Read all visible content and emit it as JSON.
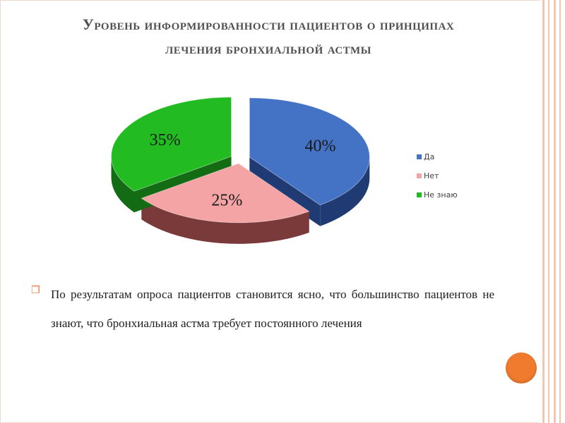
{
  "slide": {
    "title_line1": "Уровень информированности пациентов о принципах",
    "title_line2": "лечения бронхиальной астмы",
    "bullet_text": "По результатам опроса пациентов  становится ясно, что большинство пациентов не знают, что бронхиальная астма требует постоянного лечения"
  },
  "colors": {
    "title": "#505050",
    "accent_orange": "#f07b2e",
    "border_peach": "#f3c6b0"
  },
  "chart_data": {
    "type": "pie",
    "style": "3d-exploded",
    "title": "",
    "legend_position": "right",
    "categories": [
      "Да",
      "Нет",
      "Не знаю"
    ],
    "values": [
      40,
      25,
      35
    ],
    "labels": [
      "40%",
      "25%",
      "35%"
    ],
    "colors": [
      "#4472c4",
      "#f4a4a4",
      "#22bb22"
    ],
    "side_colors": [
      "#203a73",
      "#7a3a3a",
      "#136b13"
    ]
  }
}
